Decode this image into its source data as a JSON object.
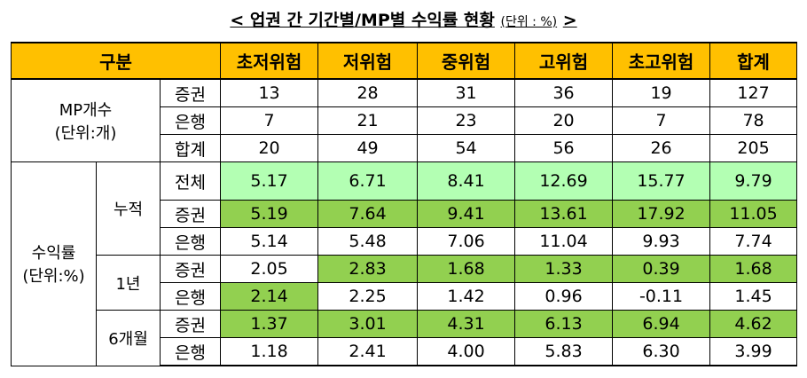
{
  "title": "< 업권 간 기간별/MP별 수익률 현황",
  "unit": "(단위 : %)",
  "title_end": ">",
  "header": {
    "label": "구분",
    "color": "#ffc000",
    "columns": [
      "초저위험",
      "저위험",
      "중위험",
      "고위험",
      "초고위험",
      "합계"
    ]
  },
  "sections": [
    {
      "label": [
        "MP개수",
        "(단위:개)"
      ],
      "rows": [
        {
          "label": "증권",
          "values": [
            "13",
            "28",
            "31",
            "36",
            "19",
            "127"
          ]
        },
        {
          "label": "은행",
          "values": [
            "7",
            "21",
            "23",
            "20",
            "7",
            "78"
          ]
        },
        {
          "label": "합계",
          "values": [
            "20",
            "49",
            "54",
            "56",
            "26",
            "205"
          ]
        }
      ]
    },
    {
      "label": [
        "수익률",
        "(단위:%)"
      ],
      "groups": [
        {
          "label": "누적",
          "rows": [
            {
              "label": "전체",
              "values": [
                "5.17",
                "6.71",
                "8.41",
                "12.69",
                "15.77",
                "9.79"
              ],
              "colors": [
                "#b3ffb3",
                "#b3ffb3",
                "#b3ffb3",
                "#b3ffb3",
                "#b3ffb3",
                "#b3ffb3"
              ]
            },
            {
              "label": "증권",
              "values": [
                "5.19",
                "7.64",
                "9.41",
                "13.61",
                "17.92",
                "11.05"
              ],
              "colors": [
                "#92d050",
                "#92d050",
                "#92d050",
                "#92d050",
                "#92d050",
                "#92d050"
              ]
            },
            {
              "label": "은행",
              "values": [
                "5.14",
                "5.48",
                "7.06",
                "11.04",
                "9.93",
                "7.74"
              ]
            }
          ]
        },
        {
          "label": "1년",
          "rows": [
            {
              "label": "증권",
              "values": [
                "2.05",
                "2.83",
                "1.68",
                "1.33",
                "0.39",
                "1.68"
              ],
              "colors": [
                null,
                "#92d050",
                "#92d050",
                "#92d050",
                "#92d050",
                "#92d050"
              ]
            },
            {
              "label": "은행",
              "values": [
                "2.14",
                "2.25",
                "1.42",
                "0.96",
                "-0.11",
                "1.45"
              ],
              "colors": [
                "#92d050",
                null,
                null,
                null,
                null,
                null
              ]
            }
          ]
        },
        {
          "label": "6개월",
          "rows": [
            {
              "label": "증권",
              "values": [
                "1.37",
                "3.01",
                "4.31",
                "6.13",
                "6.94",
                "4.62"
              ],
              "colors": [
                "#92d050",
                "#92d050",
                "#92d050",
                "#92d050",
                "#92d050",
                "#92d050"
              ]
            },
            {
              "label": "은행",
              "values": [
                "1.18",
                "2.41",
                "4.00",
                "5.83",
                "6.30",
                "3.99"
              ]
            }
          ]
        }
      ]
    }
  ]
}
